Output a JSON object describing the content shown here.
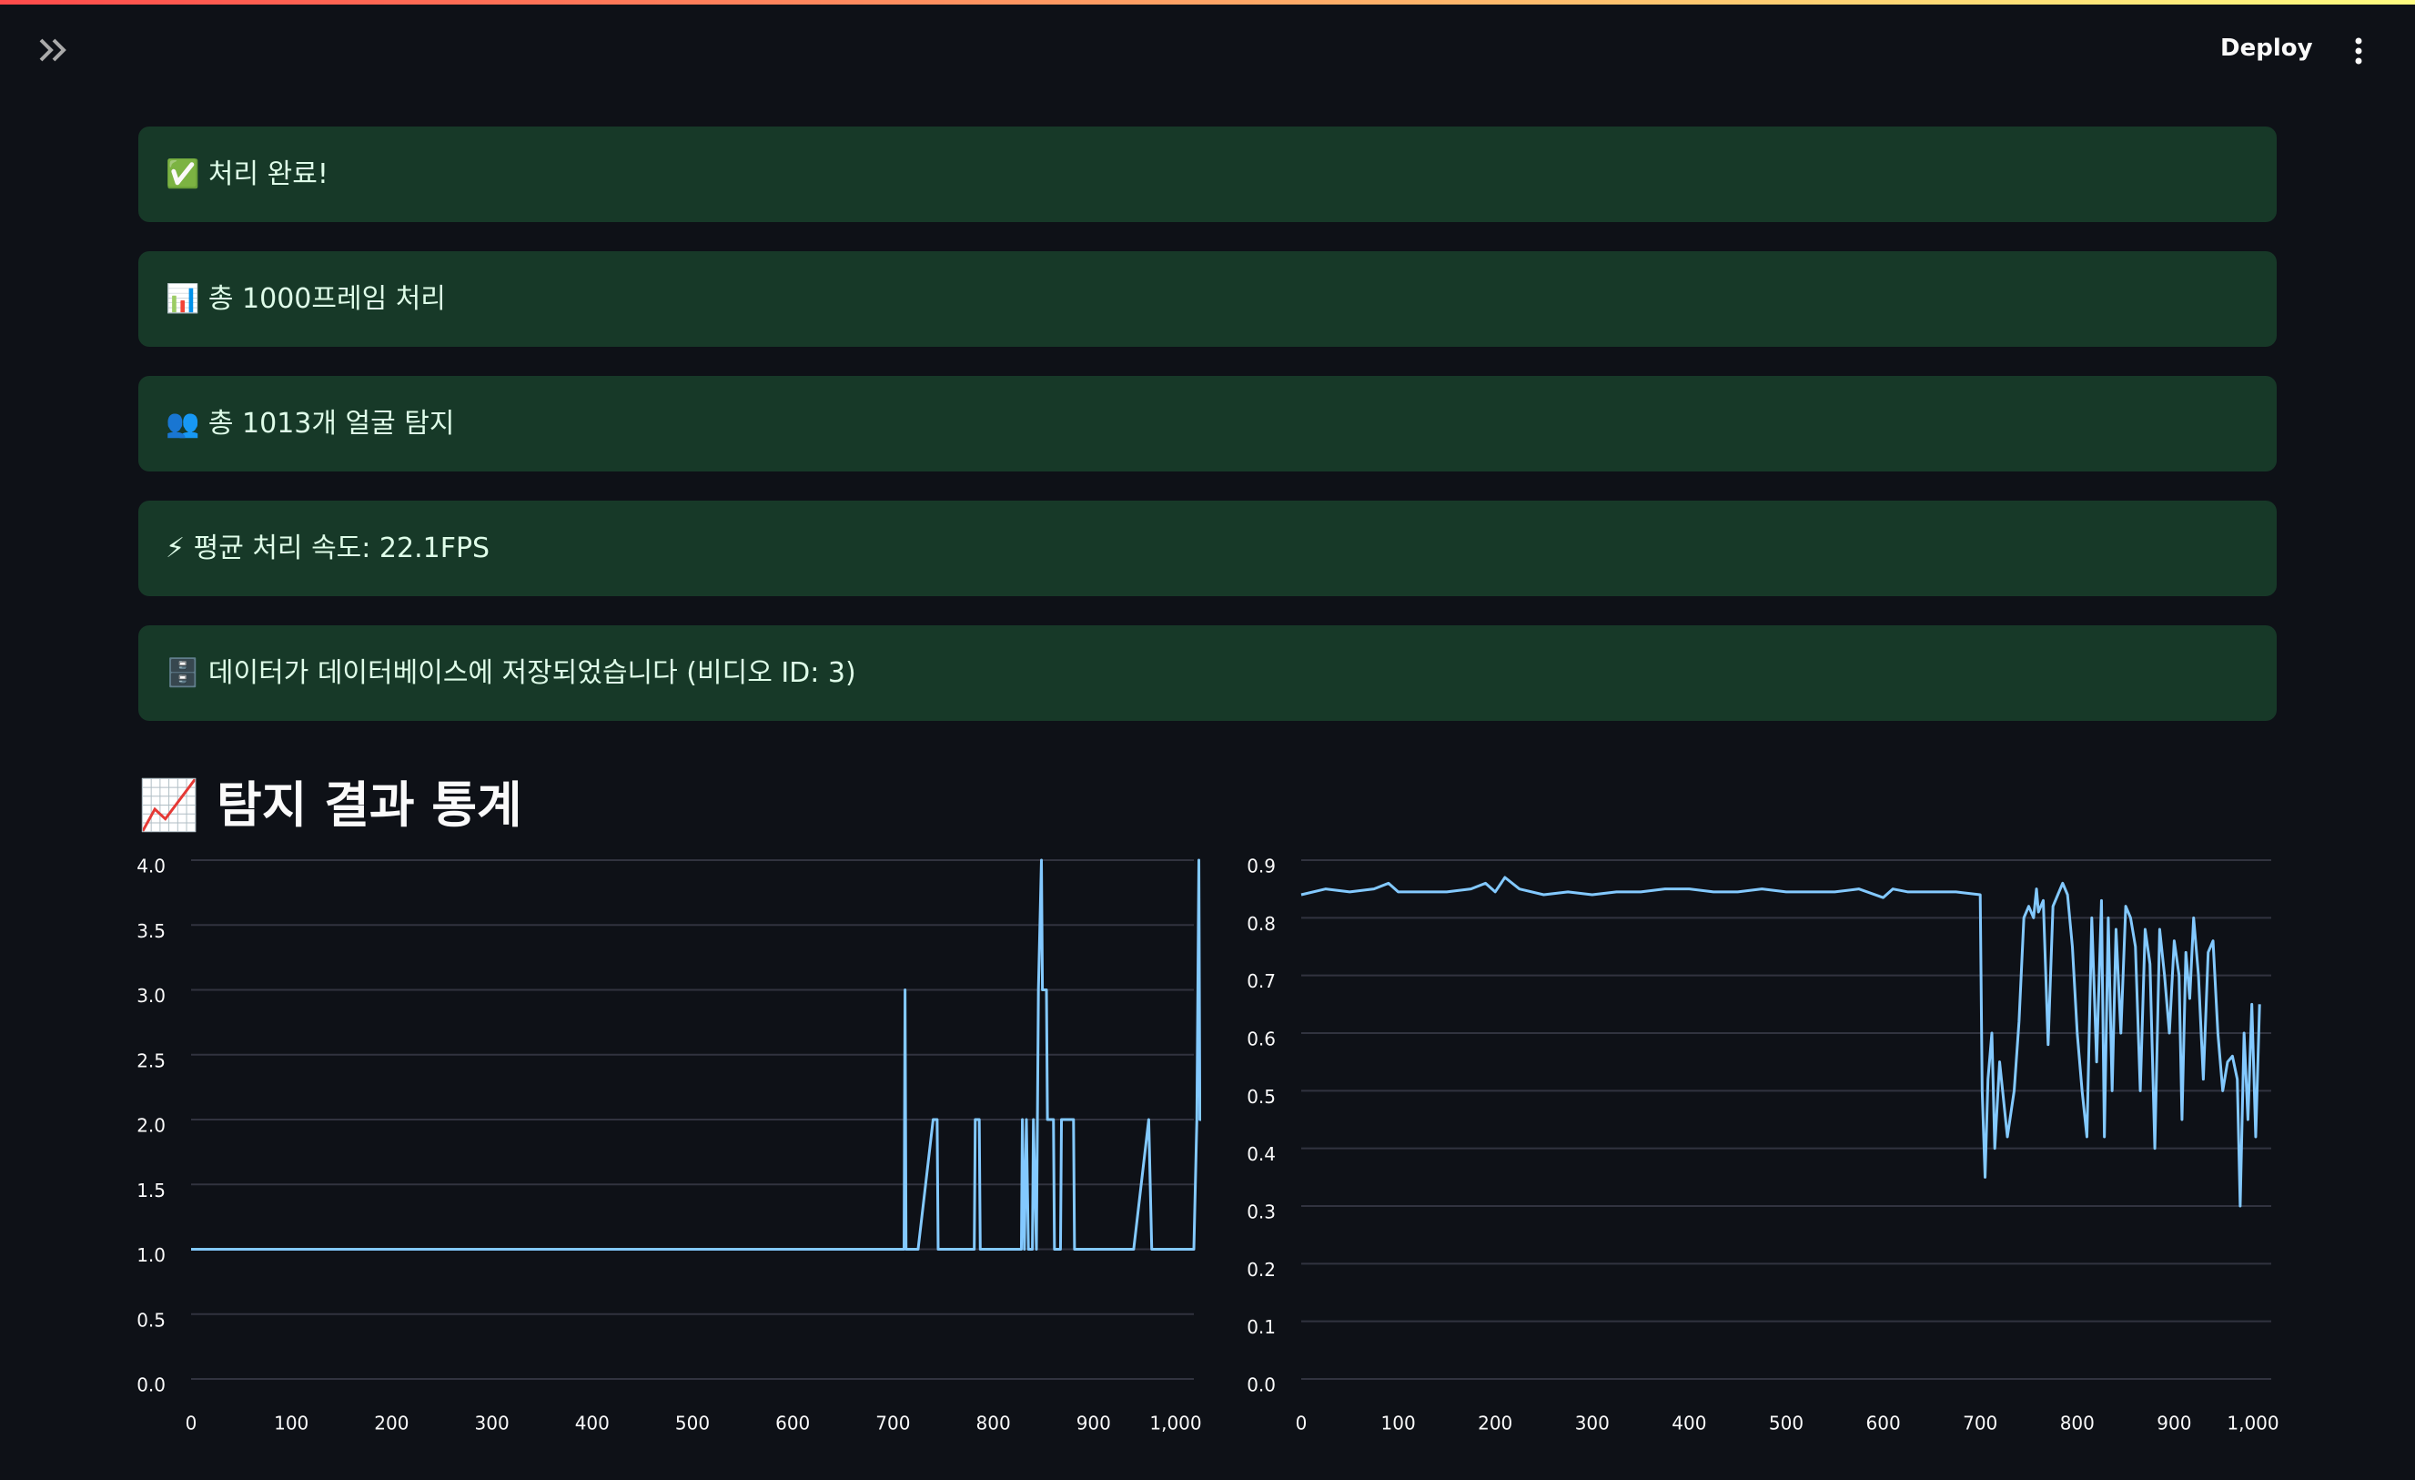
{
  "header": {
    "deploy": "Deploy"
  },
  "alerts": [
    "✅ 처리 완료!",
    "📊 총 1000프레임 처리",
    "👥 총 1013개 얼굴 탐지",
    "⚡ 평균 처리 속도: 22.1FPS",
    "🗄️ 데이터가 데이터베이스에 저장되었습니다 (비디오 ID: 3)"
  ],
  "section_title": "📈 탐지 결과 통계",
  "chart_data": [
    {
      "type": "line",
      "grid": true,
      "x": [
        0,
        711,
        712,
        713,
        725,
        740,
        744,
        745,
        781,
        782,
        786,
        787,
        828,
        829,
        831,
        833,
        835,
        839,
        840,
        843,
        845,
        848,
        849,
        853,
        854,
        860,
        861,
        867,
        868,
        880,
        881,
        940,
        955,
        958,
        1000,
        1003,
        1005,
        1006,
        1009,
        1010
      ],
      "series": [
        {
          "color": "#83c9ff",
          "values": [
            1,
            1,
            3,
            1,
            1,
            2,
            2,
            1,
            1,
            2,
            2,
            1,
            1,
            2,
            1,
            2,
            1,
            1,
            2,
            1,
            3,
            4,
            3,
            3,
            2,
            2,
            1,
            1,
            2,
            2,
            1,
            1,
            2,
            1,
            1,
            2,
            4,
            2,
            2,
            1
          ]
        }
      ],
      "xlim": [
        0,
        1000
      ],
      "xticks": [
        0,
        100,
        200,
        300,
        400,
        500,
        600,
        700,
        800,
        900,
        {
          "value": 1000,
          "label": "1,000"
        }
      ],
      "ylim": [
        0,
        4
      ],
      "yticks": [
        {
          "value": 0,
          "label": "0.0"
        },
        0.5,
        {
          "value": 1,
          "label": "1.0"
        },
        1.5,
        {
          "value": 2,
          "label": "2.0"
        },
        2.5,
        {
          "value": 3,
          "label": "3.0"
        },
        3.5,
        {
          "value": 4,
          "label": "4.0"
        }
      ]
    },
    {
      "type": "line",
      "grid": true,
      "x": [
        0,
        25,
        50,
        75,
        90,
        100,
        125,
        150,
        175,
        190,
        200,
        210,
        225,
        250,
        275,
        300,
        325,
        350,
        375,
        400,
        425,
        450,
        475,
        500,
        525,
        550,
        575,
        600,
        610,
        625,
        650,
        675,
        700,
        702,
        705,
        708,
        712,
        715,
        720,
        728,
        735,
        740,
        745,
        750,
        755,
        758,
        760,
        765,
        770,
        775,
        780,
        785,
        790,
        795,
        800,
        805,
        810,
        815,
        820,
        825,
        828,
        832,
        836,
        840,
        845,
        850,
        855,
        860,
        865,
        870,
        875,
        880,
        885,
        890,
        895,
        900,
        905,
        908,
        912,
        916,
        920,
        925,
        930,
        935,
        940,
        945,
        950,
        955,
        960,
        965,
        968,
        972,
        976,
        980,
        984,
        988
      ],
      "series": [
        {
          "color": "#83c9ff",
          "values": [
            0.84,
            0.85,
            0.845,
            0.85,
            0.86,
            0.845,
            0.845,
            0.845,
            0.85,
            0.86,
            0.845,
            0.87,
            0.85,
            0.84,
            0.845,
            0.84,
            0.845,
            0.845,
            0.85,
            0.85,
            0.845,
            0.845,
            0.85,
            0.845,
            0.845,
            0.845,
            0.85,
            0.835,
            0.85,
            0.845,
            0.845,
            0.845,
            0.84,
            0.5,
            0.35,
            0.52,
            0.6,
            0.4,
            0.55,
            0.42,
            0.5,
            0.62,
            0.8,
            0.82,
            0.8,
            0.85,
            0.81,
            0.83,
            0.58,
            0.82,
            0.84,
            0.86,
            0.84,
            0.75,
            0.6,
            0.5,
            0.42,
            0.8,
            0.55,
            0.83,
            0.42,
            0.8,
            0.5,
            0.78,
            0.6,
            0.82,
            0.8,
            0.75,
            0.5,
            0.78,
            0.72,
            0.4,
            0.78,
            0.7,
            0.6,
            0.76,
            0.7,
            0.45,
            0.74,
            0.66,
            0.8,
            0.7,
            0.52,
            0.74,
            0.76,
            0.6,
            0.5,
            0.55,
            0.56,
            0.52,
            0.3,
            0.6,
            0.45,
            0.65,
            0.42,
            0.65
          ]
        }
      ],
      "xlim": [
        0,
        1000
      ],
      "xticks": [
        0,
        100,
        200,
        300,
        400,
        500,
        600,
        700,
        800,
        900,
        {
          "value": 1000,
          "label": "1,000"
        }
      ],
      "ylim": [
        0,
        0.9
      ],
      "yticks": [
        {
          "value": 0,
          "label": "0.0"
        },
        0.1,
        0.2,
        0.3,
        0.4,
        0.5,
        0.6,
        0.7,
        0.8,
        0.9
      ]
    }
  ]
}
